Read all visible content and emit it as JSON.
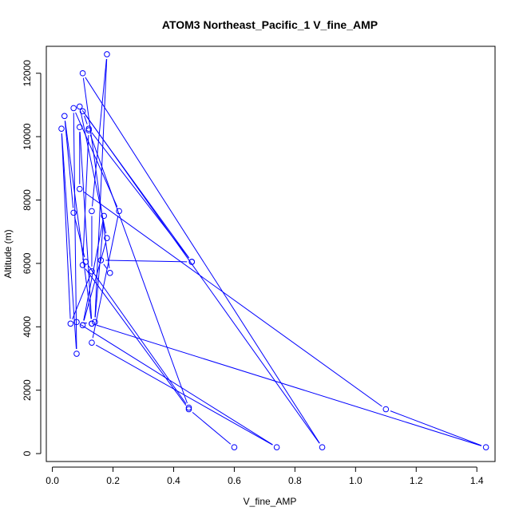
{
  "chart_data": {
    "type": "line",
    "title": "ATOM3 Northeast_Pacific_1 V_fine_AMP",
    "xlabel": "V_fine_AMP",
    "ylabel": "Altitude (m)",
    "xlim": [
      -0.02,
      1.46
    ],
    "ylim": [
      -250,
      12850
    ],
    "xticks": [
      "0.0",
      "0.2",
      "0.4",
      "0.6",
      "0.8",
      "1.0",
      "1.2",
      "1.4"
    ],
    "yticks": [
      "0",
      "2000",
      "4000",
      "6000",
      "8000",
      "10000",
      "12000"
    ],
    "grid": false,
    "line_color": "#0000ff",
    "marker": "open-circle",
    "series": [
      {
        "points": [
          {
            "x": 0.6,
            "y": 200
          },
          {
            "x": 0.45,
            "y": 1400
          },
          {
            "x": 0.1,
            "y": 5950
          },
          {
            "x": 0.12,
            "y": 10200
          },
          {
            "x": 0.45,
            "y": 1450
          },
          {
            "x": 0.11,
            "y": 6050
          },
          {
            "x": 0.07,
            "y": 7600
          },
          {
            "x": 0.04,
            "y": 10650
          },
          {
            "x": 0.13,
            "y": 4100
          },
          {
            "x": 1.43,
            "y": 200
          },
          {
            "x": 1.1,
            "y": 1400
          },
          {
            "x": 0.09,
            "y": 8350
          },
          {
            "x": 0.09,
            "y": 10300
          },
          {
            "x": 0.13,
            "y": 4100
          },
          {
            "x": 0.08,
            "y": 4150
          },
          {
            "x": 0.74,
            "y": 200
          },
          {
            "x": 0.13,
            "y": 3500
          },
          {
            "x": 0.22,
            "y": 7650
          },
          {
            "x": 0.07,
            "y": 10900
          },
          {
            "x": 0.08,
            "y": 3150
          },
          {
            "x": 0.03,
            "y": 10250
          },
          {
            "x": 0.06,
            "y": 4100
          },
          {
            "x": 0.13,
            "y": 5750
          },
          {
            "x": 0.13,
            "y": 7650
          },
          {
            "x": 0.18,
            "y": 12600
          },
          {
            "x": 0.14,
            "y": 4150
          },
          {
            "x": 0.17,
            "y": 7500
          },
          {
            "x": 0.1,
            "y": 4050
          },
          {
            "x": 0.18,
            "y": 6800
          },
          {
            "x": 0.09,
            "y": 10950
          },
          {
            "x": 0.89,
            "y": 200
          },
          {
            "x": 0.1,
            "y": 12000
          },
          {
            "x": 0.19,
            "y": 5700
          },
          {
            "x": 0.16,
            "y": 6100
          },
          {
            "x": 0.46,
            "y": 6050
          },
          {
            "x": 0.1,
            "y": 10800
          },
          {
            "x": 0.12,
            "y": 10250
          },
          {
            "x": 0.46,
            "y": 6050
          }
        ]
      }
    ]
  }
}
